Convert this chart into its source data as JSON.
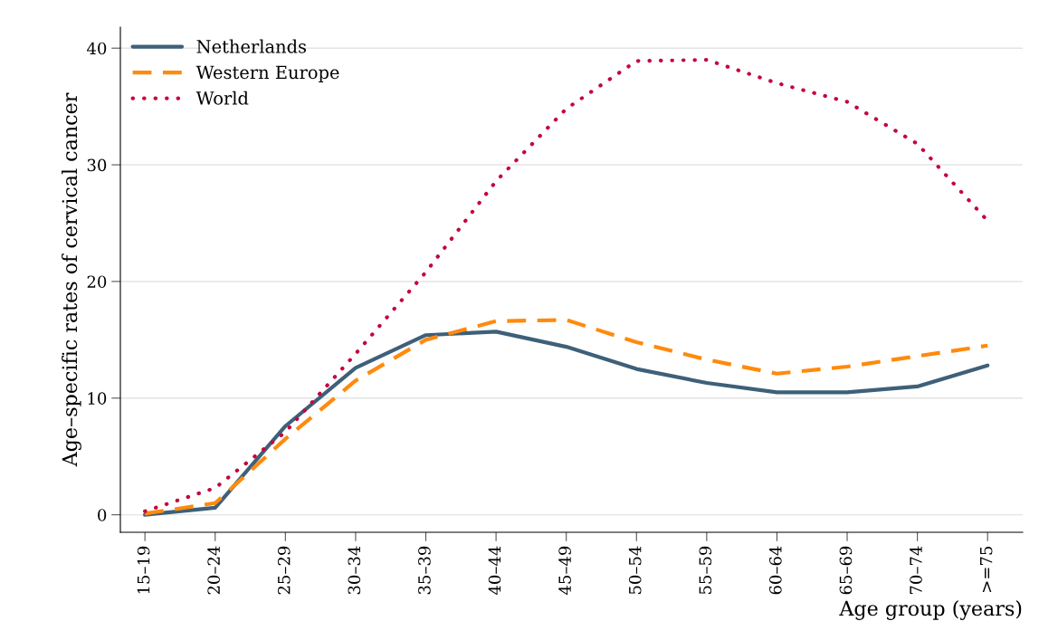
{
  "chart_data": {
    "type": "line",
    "xlabel": "Age group (years)",
    "ylabel": "Age–specific rates of cervical cancer",
    "categories": [
      "15–19",
      "20–24",
      "25–29",
      "30–34",
      "35–39",
      "40–44",
      "45–49",
      "50–54",
      "55–59",
      "60–64",
      "65–69",
      "70–74",
      ">=75"
    ],
    "series": [
      {
        "name": "Netherlands",
        "color": "#3e6079",
        "line_style": "solid",
        "values": [
          0.0,
          0.6,
          7.6,
          12.6,
          15.4,
          15.7,
          14.4,
          12.5,
          11.3,
          10.5,
          10.5,
          11.0,
          12.8
        ]
      },
      {
        "name": "Western Europe",
        "color": "#ff8a0c",
        "line_style": "dashed",
        "values": [
          0.1,
          1.0,
          6.5,
          11.5,
          15.0,
          16.6,
          16.7,
          14.8,
          13.3,
          12.1,
          12.7,
          13.6,
          14.5
        ]
      },
      {
        "name": "World",
        "color": "#c4063e",
        "line_style": "dotted",
        "values": [
          0.3,
          2.3,
          7.1,
          13.8,
          20.8,
          28.6,
          34.8,
          38.9,
          39.0,
          37.0,
          35.4,
          31.8,
          25.2
        ]
      }
    ],
    "ylim": [
      -1.5,
      41.8
    ],
    "yticks": [
      0,
      10,
      20,
      30,
      40
    ],
    "grid": "y",
    "legend": "top left",
    "marker": "none"
  }
}
